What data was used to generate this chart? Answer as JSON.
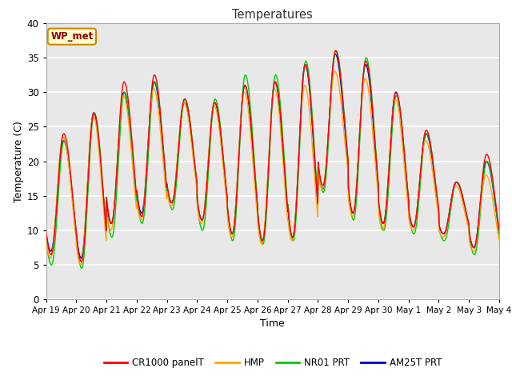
{
  "title": "Temperatures",
  "xlabel": "Time",
  "ylabel": "Temperature (C)",
  "ylim": [
    0,
    40
  ],
  "bg_color": "#e8e8e8",
  "grid_color": "white",
  "annotation_text": "WP_met",
  "annotation_bg": "#ffffcc",
  "annotation_border": "#cc8800",
  "annotation_text_color": "#8b0000",
  "series_colors": {
    "CR1000 panelT": "#ff0000",
    "HMP": "#ffa500",
    "NR01 PRT": "#00cc00",
    "AM25T PRT": "#0000cc"
  },
  "tick_labels": [
    "Apr 19",
    "Apr 20",
    "Apr 21",
    "Apr 22",
    "Apr 23",
    "Apr 24",
    "Apr 25",
    "Apr 26",
    "Apr 27",
    "Apr 28",
    "Apr 29",
    "Apr 30",
    "May 1",
    "May 2",
    "May 3",
    "May 4"
  ],
  "yticks": [
    0,
    5,
    10,
    15,
    20,
    25,
    30,
    35,
    40
  ],
  "cr1000_peaks": [
    24,
    27,
    31.5,
    32.5,
    29,
    28.5,
    31,
    31.5,
    34,
    36,
    34.5,
    30,
    24.5,
    17,
    21
  ],
  "cr1000_mins": [
    6.5,
    5.5,
    11,
    12,
    14,
    11.5,
    9.5,
    8.5,
    9,
    16.5,
    12.5,
    11,
    10.5,
    9.5,
    7.5
  ],
  "hmp_peaks": [
    23.5,
    26.5,
    29.5,
    30.5,
    28.5,
    28,
    30,
    30.5,
    31,
    33,
    32,
    29,
    23,
    16.5,
    18
  ],
  "hmp_mins": [
    6,
    5,
    10,
    11.5,
    13.5,
    11,
    9,
    8,
    8.5,
    16,
    12,
    10,
    10,
    9,
    7
  ],
  "nr01_peaks": [
    23,
    27,
    30,
    31.5,
    29,
    29,
    32.5,
    32.5,
    34.5,
    36,
    35,
    29.5,
    24,
    17,
    20
  ],
  "nr01_mins": [
    5,
    4.5,
    9,
    11,
    13,
    10,
    8.5,
    8,
    8.5,
    15.5,
    11.5,
    10,
    9.5,
    8.5,
    6.5
  ],
  "am25_peaks": [
    23,
    27,
    30,
    31.5,
    28.5,
    28.5,
    31,
    31.5,
    34,
    35.5,
    34,
    30,
    24,
    17,
    20
  ],
  "am25_mins": [
    7,
    6,
    11,
    12.5,
    14,
    11.5,
    9.5,
    8.5,
    9,
    16,
    12.5,
    11,
    10.5,
    9.5,
    7.5
  ]
}
